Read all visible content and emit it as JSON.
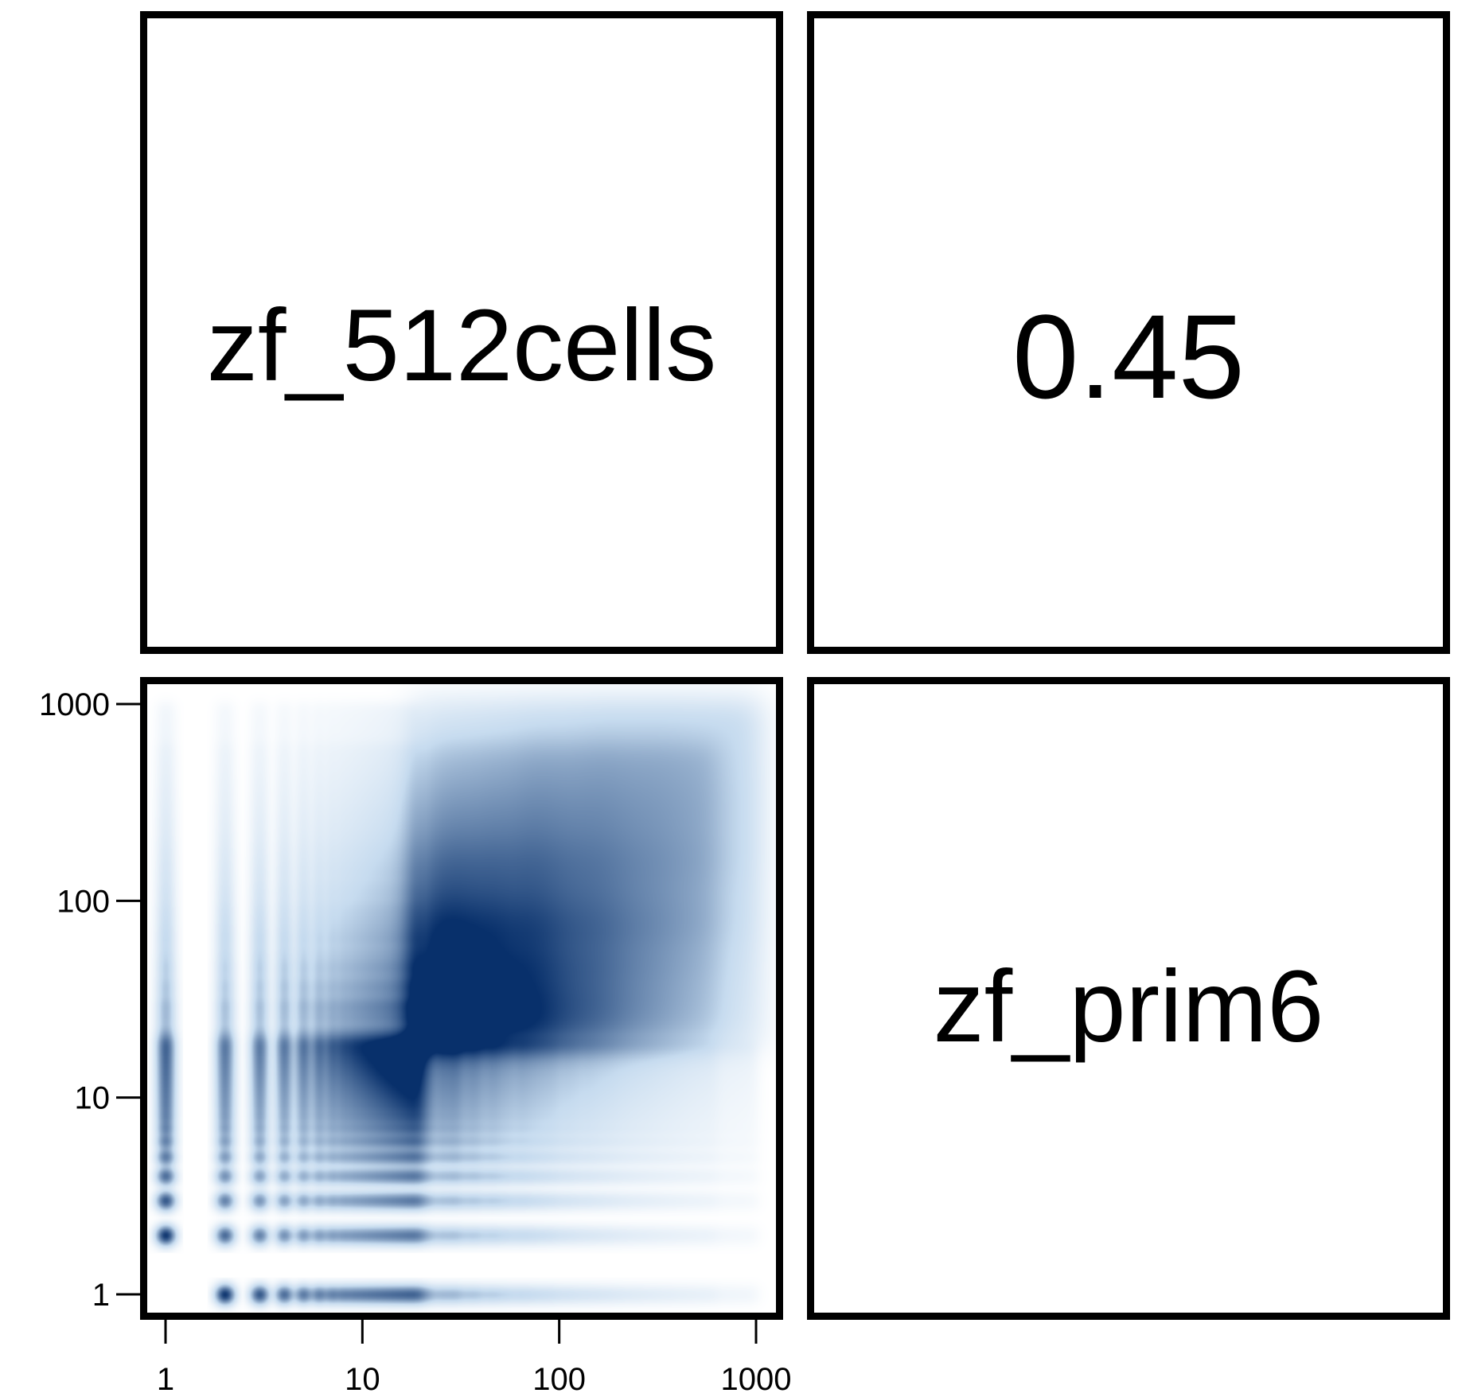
{
  "panels": {
    "top_left_label": "zf_512cells",
    "top_right_value": "0.45",
    "bottom_right_label": "zf_prim6"
  },
  "chart_data": {
    "type": "heatmap",
    "description_kind": "pairs-plot smoothed scatter (density)",
    "x_scale": "log",
    "y_scale": "log",
    "xlim": [
      1,
      1000
    ],
    "ylim": [
      1,
      1000
    ],
    "x_ticks": [
      1,
      10,
      100,
      1000
    ],
    "y_ticks": [
      1,
      10,
      100,
      1000
    ],
    "x_tick_labels": [
      "1",
      "10",
      "100",
      "1000"
    ],
    "y_tick_labels": [
      "1",
      "10",
      "100",
      "1000"
    ],
    "correlation": 0.45,
    "variables": [
      "zf_512cells",
      "zf_prim6"
    ],
    "color_low": "#ffffff",
    "color_high": "#08306b"
  }
}
